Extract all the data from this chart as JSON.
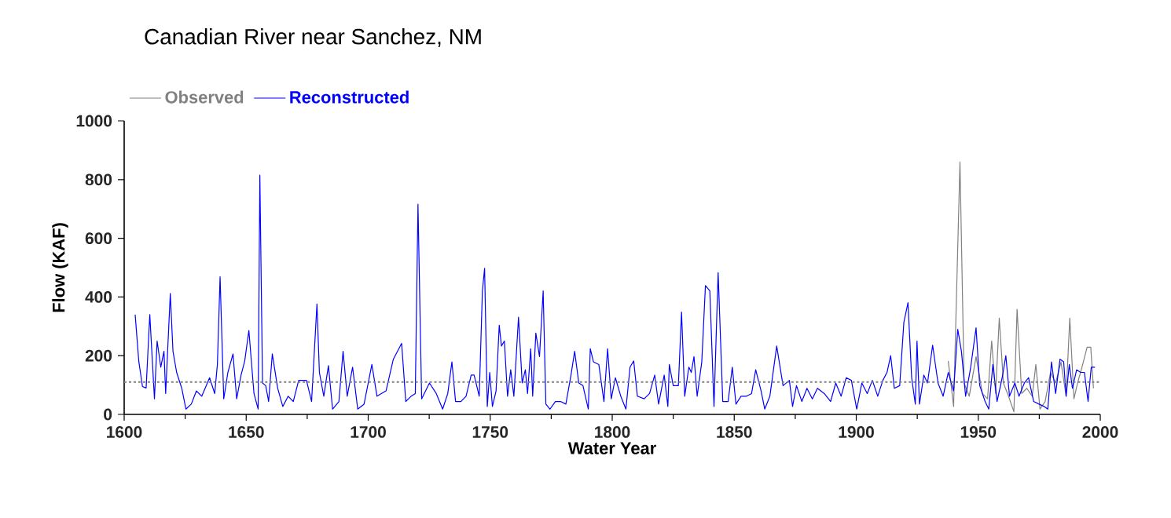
{
  "chart_data": {
    "type": "line",
    "title": "Canadian River near Sanchez, NM",
    "xlabel": "Water Year",
    "ylabel": "Flow (KAF)",
    "xlim": [
      1600,
      2000
    ],
    "xticks": [
      1600,
      1650,
      1700,
      1750,
      1800,
      1850,
      1900,
      1950,
      2000
    ],
    "ylim": [
      0,
      1000
    ],
    "yticks": [
      0,
      200,
      400,
      600,
      800,
      1000
    ],
    "grid": false,
    "legend": "top left",
    "marker": "none",
    "line_style": "solid",
    "ref_lines": [
      {
        "axis": "y",
        "value": 110,
        "color": "#808080",
        "line_style": "dotted"
      }
    ],
    "series": [
      {
        "name": "Observed",
        "color": "#808080",
        "x": [
          1937.7,
          1939.9,
          1942.5,
          1944.2,
          1946.3,
          1949.1,
          1951.7,
          1953.8,
          1955.5,
          1957.1,
          1958.6,
          1960.3,
          1962.4,
          1964.6,
          1965.9,
          1967.8,
          1969.9,
          1972.1,
          1973.6,
          1975.3,
          1977.4,
          1979.6,
          1981.7,
          1983.9,
          1986,
          1987.5,
          1989.2,
          1990.7,
          1992.5,
          1994.6,
          1996.1,
          1997.2
        ],
        "values": [
          182,
          27,
          860,
          107,
          62,
          197,
          71,
          53,
          250,
          71,
          328,
          107,
          62,
          9,
          358,
          71,
          89,
          62,
          170,
          18,
          44,
          143,
          107,
          179,
          62,
          328,
          53,
          107,
          161,
          229,
          229,
          89
        ]
      },
      {
        "name": "Reconstructed",
        "color": "#0000ff",
        "x": [
          1604.5,
          1606,
          1607.5,
          1609,
          1610.5,
          1612.4,
          1613.5,
          1615,
          1616.3,
          1617,
          1618.9,
          1620,
          1621.5,
          1623.6,
          1625.3,
          1627.5,
          1629.6,
          1631.8,
          1635,
          1637.1,
          1638.2,
          1639.3,
          1640.8,
          1642.5,
          1644.6,
          1646.1,
          1647.9,
          1649.4,
          1651.1,
          1653.2,
          1654.9,
          1655.6,
          1656.7,
          1658,
          1659.2,
          1660.7,
          1662.9,
          1665,
          1667.2,
          1669.3,
          1671.5,
          1674.7,
          1676.8,
          1679,
          1680,
          1681.8,
          1683.7,
          1685.4,
          1688,
          1689.7,
          1691.4,
          1693.6,
          1695.7,
          1698.3,
          1701.5,
          1703.6,
          1707.3,
          1710.3,
          1713.7,
          1715.4,
          1717.6,
          1719.3,
          1720.4,
          1721.9,
          1725.1,
          1727.9,
          1730.5,
          1732.6,
          1734.3,
          1735.8,
          1738,
          1740.1,
          1742.2,
          1743.4,
          1745.5,
          1746.8,
          1747.7,
          1748.8,
          1749.8,
          1750.9,
          1752.4,
          1753.7,
          1754.6,
          1755.8,
          1757.1,
          1758.4,
          1759.7,
          1761.6,
          1763.1,
          1764.4,
          1765.3,
          1766.6,
          1767.4,
          1768.7,
          1770.2,
          1771.7,
          1772.8,
          1774.5,
          1776.7,
          1778.8,
          1781,
          1783.1,
          1784.6,
          1786.3,
          1788,
          1790.2,
          1791,
          1792.3,
          1794.5,
          1796.6,
          1798.1,
          1799.6,
          1801.3,
          1803.5,
          1805.6,
          1807.3,
          1808.8,
          1810.3,
          1813.1,
          1815.3,
          1817.4,
          1819,
          1821.3,
          1822.8,
          1823.4,
          1825,
          1827.1,
          1828.4,
          1829.7,
          1831.4,
          1832.4,
          1833.5,
          1834.8,
          1836.7,
          1838.2,
          1840,
          1841.7,
          1843.4,
          1845.3,
          1847.5,
          1849.2,
          1850.7,
          1852.8,
          1855,
          1857.1,
          1858.8,
          1861,
          1862.5,
          1864.6,
          1867.4,
          1870,
          1872.6,
          1873.9,
          1875.5,
          1877.7,
          1879.8,
          1882,
          1884.1,
          1886.9,
          1889.5,
          1891.6,
          1893.8,
          1895.9,
          1898,
          1900.2,
          1902.3,
          1904.5,
          1906.6,
          1908.8,
          1910.9,
          1912.6,
          1914.1,
          1915.6,
          1917.8,
          1919.5,
          1921.2,
          1922.7,
          1924.2,
          1924.9,
          1925.9,
          1927.7,
          1929.2,
          1931.3,
          1933.5,
          1935.6,
          1937.7,
          1939.9,
          1941.6,
          1943.1,
          1944.8,
          1946.9,
          1949.1,
          1950.6,
          1952.8,
          1954.3,
          1956,
          1957.7,
          1959.8,
          1961.3,
          1962.8,
          1965,
          1966.7,
          1968.9,
          1970.6,
          1972.7,
          1974.9,
          1977,
          1978.5,
          1980,
          1981.7,
          1983.5,
          1985,
          1986,
          1987.3,
          1988.6,
          1990.3,
          1992,
          1993.5,
          1995,
          1996.3,
          1997.8
        ],
        "values": [
          340,
          180,
          95,
          90,
          340,
          53,
          250,
          161,
          215,
          71,
          412,
          215,
          143,
          89,
          18,
          35,
          80,
          62,
          125,
          71,
          170,
          469,
          53,
          143,
          206,
          53,
          134,
          182,
          286,
          71,
          18,
          815,
          107,
          98,
          44,
          206,
          89,
          27,
          62,
          44,
          116,
          116,
          44,
          376,
          143,
          62,
          166,
          18,
          44,
          215,
          62,
          161,
          18,
          35,
          170,
          62,
          80,
          188,
          242,
          44,
          62,
          71,
          716,
          53,
          107,
          71,
          18,
          71,
          179,
          44,
          44,
          62,
          134,
          134,
          62,
          421,
          498,
          27,
          143,
          27,
          80,
          304,
          233,
          250,
          62,
          152,
          62,
          331,
          107,
          152,
          71,
          224,
          62,
          277,
          197,
          421,
          35,
          18,
          44,
          44,
          35,
          134,
          215,
          107,
          98,
          18,
          224,
          179,
          170,
          44,
          224,
          53,
          125,
          62,
          18,
          161,
          182,
          62,
          53,
          71,
          134,
          35,
          134,
          27,
          170,
          98,
          98,
          349,
          62,
          161,
          143,
          197,
          62,
          179,
          439,
          421,
          27,
          483,
          44,
          44,
          161,
          35,
          62,
          62,
          71,
          152,
          80,
          18,
          62,
          233,
          98,
          116,
          27,
          98,
          44,
          89,
          53,
          89,
          71,
          44,
          107,
          62,
          125,
          116,
          18,
          107,
          71,
          116,
          62,
          116,
          143,
          200,
          89,
          98,
          313,
          381,
          125,
          35,
          250,
          35,
          134,
          107,
          236,
          107,
          62,
          143,
          80,
          290,
          215,
          62,
          161,
          295,
          98,
          44,
          18,
          170,
          44,
          125,
          200,
          62,
          107,
          62,
          107,
          125,
          44,
          35,
          27,
          18,
          179,
          71,
          188,
          179,
          62,
          170,
          89,
          152,
          143,
          143,
          44,
          161,
          161
        ]
      }
    ]
  }
}
